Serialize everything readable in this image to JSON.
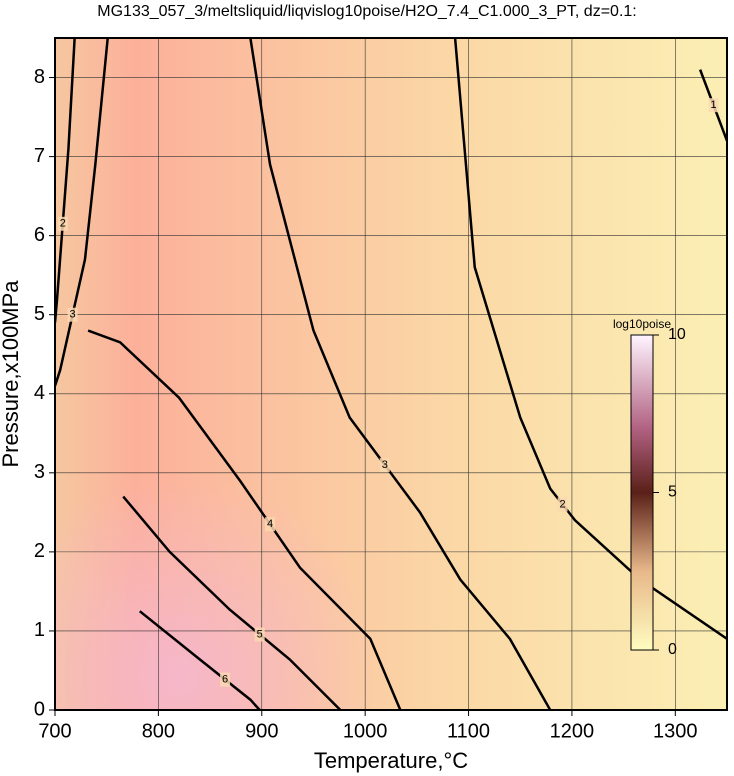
{
  "chart_data": {
    "type": "contour",
    "title": "MG133_057_3/meltsliquid/liqvislog10poise/H2O_7.4_C1.000_3_PT, dz=0.1:",
    "xlabel": "Temperature,°C",
    "ylabel": "Pressure,x100MPa",
    "xlim": [
      700,
      1350
    ],
    "ylim": [
      0,
      8.5
    ],
    "xticks": [
      700,
      800,
      900,
      1000,
      1100,
      1200,
      1300
    ],
    "yticks": [
      0,
      1,
      2,
      3,
      4,
      5,
      6,
      7,
      8
    ],
    "grid": true,
    "contours": [
      {
        "level": 1,
        "x": [
          1324,
          1350
        ],
        "y": [
          8.1,
          7.2
        ]
      },
      {
        "level": 2,
        "x": [
          1087,
          1106,
          1150,
          1179,
          1203,
          1266,
          1350
        ],
        "y": [
          8.5,
          5.6,
          3.7,
          2.8,
          2.4,
          1.65,
          0.9
        ]
      },
      {
        "level": 3,
        "x": [
          889,
          908,
          950,
          985,
          1053,
          1092,
          1140,
          1179
        ],
        "y": [
          8.5,
          6.9,
          4.8,
          3.7,
          2.5,
          1.65,
          0.9,
          0
        ]
      },
      {
        "level": 4,
        "x": [
          732,
          763,
          820,
          879,
          937,
          1005,
          1034
        ],
        "y": [
          4.8,
          4.65,
          3.95,
          2.9,
          1.8,
          0.9,
          0
        ]
      },
      {
        "level": 5,
        "x": [
          766,
          811,
          869,
          927,
          976
        ],
        "y": [
          2.7,
          2.0,
          1.27,
          0.64,
          0
        ]
      },
      {
        "level": 6,
        "x": [
          782,
          840,
          889,
          898
        ],
        "y": [
          1.25,
          0.64,
          0.13,
          0
        ]
      },
      {
        "level": 3,
        "x": [
          751,
          739,
          729,
          705,
          700
        ],
        "y": [
          8.5,
          6.9,
          5.7,
          4.3,
          4.1
        ]
      },
      {
        "level": 2,
        "x": [
          719,
          713,
          702,
          700
        ],
        "y": [
          8.5,
          7.1,
          5.2,
          4.9
        ]
      }
    ],
    "colorbar": {
      "label": "log10poise",
      "lim": [
        0,
        10
      ],
      "ticks": [
        0,
        5,
        10
      ]
    }
  }
}
